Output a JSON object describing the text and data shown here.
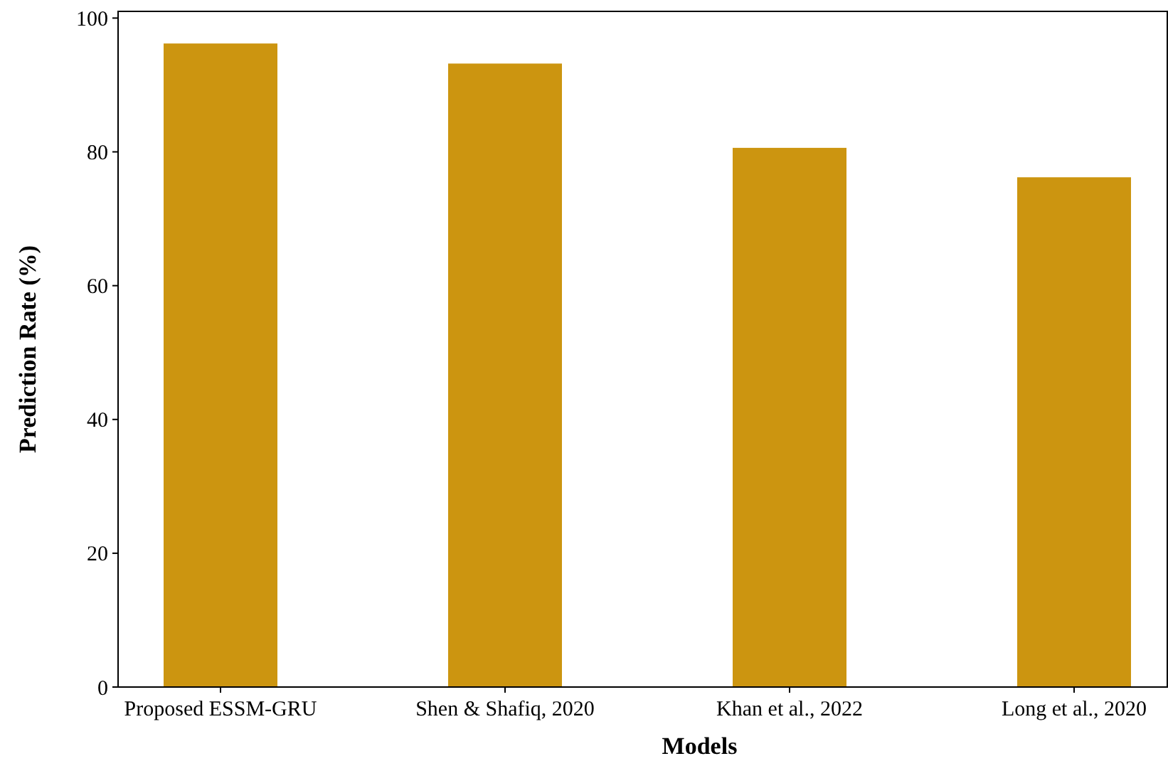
{
  "chart_data": {
    "type": "bar",
    "xlabel": "Models",
    "ylabel": "Prediction Rate (%)",
    "categories": [
      "Proposed ESSM-GRU",
      "Shen & Shafiq, 2020",
      "Khan et al., 2022",
      "Long et al., 2020"
    ],
    "values": [
      96.2,
      93.2,
      80.6,
      76.2
    ],
    "color": "#cc9510",
    "ylim": [
      0,
      101
    ],
    "yticks": [
      0,
      20,
      40,
      60,
      80,
      100
    ],
    "grid": false
  }
}
